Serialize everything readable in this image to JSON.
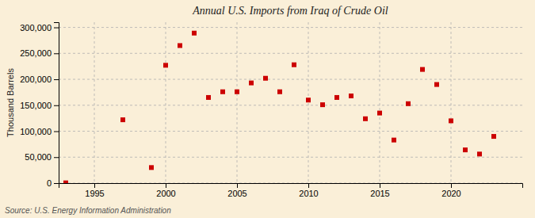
{
  "chart_data": {
    "type": "scatter",
    "title": "Annual U.S. Imports from Iraq of Crude Oil",
    "ylabel": "Thousand Barrels",
    "source": "Source: U.S. Energy Information Administration",
    "x": [
      1993,
      1997,
      1999,
      2000,
      2001,
      2002,
      2003,
      2004,
      2005,
      2006,
      2007,
      2008,
      2009,
      2010,
      2011,
      2012,
      2013,
      2014,
      2015,
      2016,
      2017,
      2018,
      2019,
      2020,
      2021,
      2022,
      2023
    ],
    "values": [
      500,
      122000,
      30000,
      227000,
      265000,
      289000,
      165000,
      176000,
      176000,
      193000,
      202000,
      176000,
      228000,
      160000,
      151000,
      165000,
      168000,
      124000,
      135000,
      83000,
      153000,
      219000,
      190000,
      120000,
      64000,
      56000,
      90000
    ],
    "color": "#cc0000",
    "marker": "square",
    "xlim": [
      1992.5,
      2025
    ],
    "xticks": [
      1995,
      2000,
      2005,
      2010,
      2015,
      2020
    ],
    "ylim": [
      0,
      310000
    ],
    "yticks": [
      0,
      {
        "value": 50000,
        "label": "50,000"
      },
      {
        "value": 100000,
        "label": "100,000"
      },
      {
        "value": 150000,
        "label": "150,000"
      },
      {
        "value": 200000,
        "label": "200,000"
      },
      {
        "value": 250000,
        "label": "250,000"
      },
      {
        "value": 300000,
        "label": "300,000"
      }
    ],
    "grid": true
  }
}
